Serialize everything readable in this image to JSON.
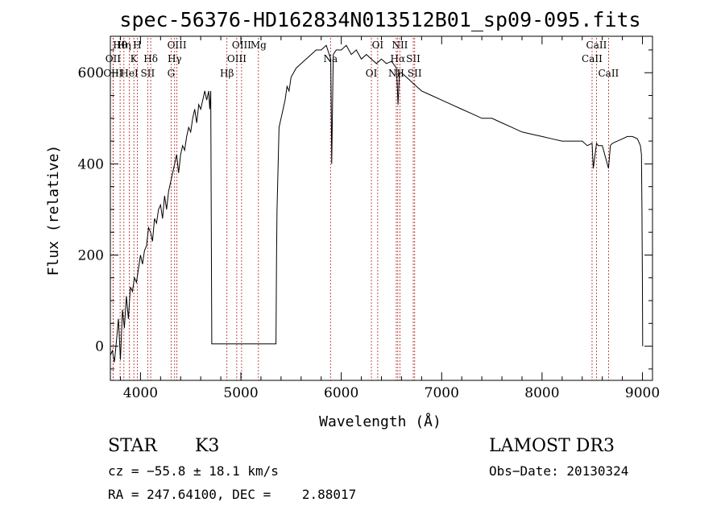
{
  "chart_data": {
    "type": "line",
    "title": "spec-56376-HD162834N013512B01_sp09-095.fits",
    "xlabel": "Wavelength (Å)",
    "ylabel": "Flux (relative)",
    "xlim": [
      3700,
      9100
    ],
    "ylim": [
      -75,
      680
    ],
    "xticks": [
      4000,
      5000,
      6000,
      7000,
      8000,
      9000
    ],
    "yticks": [
      0,
      200,
      400,
      600
    ],
    "grid": false,
    "legend": "none",
    "series": [
      {
        "name": "flux",
        "x": [
          3700,
          3720,
          3740,
          3760,
          3780,
          3800,
          3820,
          3840,
          3860,
          3880,
          3900,
          3920,
          3940,
          3960,
          3980,
          4000,
          4020,
          4040,
          4060,
          4080,
          4100,
          4120,
          4140,
          4160,
          4180,
          4200,
          4220,
          4240,
          4260,
          4280,
          4300,
          4320,
          4340,
          4360,
          4380,
          4400,
          4420,
          4440,
          4460,
          4480,
          4500,
          4520,
          4540,
          4560,
          4580,
          4600,
          4620,
          4640,
          4660,
          4680,
          4690,
          4700,
          4710,
          5350,
          5355,
          5360,
          5380,
          5400,
          5420,
          5440,
          5460,
          5480,
          5500,
          5550,
          5600,
          5650,
          5700,
          5750,
          5800,
          5850,
          5880,
          5895,
          5905,
          5920,
          5950,
          6000,
          6050,
          6100,
          6150,
          6200,
          6250,
          6300,
          6350,
          6400,
          6450,
          6500,
          6550,
          6565,
          6580,
          6600,
          6650,
          6700,
          6750,
          6800,
          6900,
          7000,
          7100,
          7200,
          7300,
          7400,
          7500,
          7600,
          7700,
          7800,
          7900,
          8000,
          8100,
          8200,
          8300,
          8400,
          8450,
          8498,
          8510,
          8542,
          8560,
          8600,
          8662,
          8680,
          8700,
          8750,
          8800,
          8850,
          8900,
          8950,
          8980,
          8990,
          8995,
          9000,
          9002
        ],
        "y": [
          -20,
          -10,
          -35,
          10,
          60,
          -30,
          80,
          40,
          110,
          60,
          130,
          120,
          150,
          140,
          170,
          200,
          180,
          210,
          220,
          260,
          250,
          230,
          280,
          270,
          300,
          310,
          280,
          330,
          300,
          340,
          360,
          380,
          400,
          420,
          380,
          420,
          440,
          430,
          460,
          480,
          470,
          500,
          520,
          490,
          530,
          520,
          540,
          560,
          540,
          560,
          520,
          560,
          5,
          5,
          200,
          300,
          480,
          500,
          520,
          540,
          570,
          560,
          590,
          610,
          620,
          630,
          640,
          650,
          650,
          660,
          640,
          630,
          400,
          640,
          650,
          650,
          660,
          640,
          650,
          630,
          640,
          630,
          620,
          630,
          620,
          625,
          610,
          530,
          600,
          600,
          590,
          580,
          570,
          560,
          550,
          540,
          530,
          520,
          510,
          500,
          500,
          490,
          480,
          470,
          465,
          460,
          455,
          450,
          450,
          450,
          440,
          445,
          390,
          445,
          440,
          440,
          390,
          440,
          445,
          450,
          455,
          460,
          460,
          455,
          440,
          420,
          300,
          130,
          0
        ]
      }
    ],
    "lines": [
      {
        "label": "Hθ",
        "wl": 3797
      },
      {
        "label": "OII",
        "wl": 3727
      },
      {
        "label": "OIII",
        "wl": 3727
      },
      {
        "label": "Hη",
        "wl": 3835
      },
      {
        "label": "K",
        "wl": 3934
      },
      {
        "label": "HeI",
        "wl": 3889
      },
      {
        "label": "H",
        "wl": 3968
      },
      {
        "label": "Hδ",
        "wl": 4102
      },
      {
        "label": "SII",
        "wl": 4072
      },
      {
        "label": "OIII",
        "wl": 4363
      },
      {
        "label": "Hγ",
        "wl": 4340
      },
      {
        "label": "G",
        "wl": 4305
      },
      {
        "label": "OIII",
        "wl": 5007
      },
      {
        "label": "OIII",
        "wl": 4959
      },
      {
        "label": "Hβ",
        "wl": 4861
      },
      {
        "label": "Mg",
        "wl": 5175
      },
      {
        "label": "Na",
        "wl": 5893
      },
      {
        "label": "OI",
        "wl": 6300
      },
      {
        "label": "OI",
        "wl": 6363
      },
      {
        "label": "Hα",
        "wl": 6563
      },
      {
        "label": "NII",
        "wl": 6548
      },
      {
        "label": "NII",
        "wl": 6584
      },
      {
        "label": "SII",
        "wl": 6717
      },
      {
        "label": "SII",
        "wl": 6731
      },
      {
        "label": "CaII",
        "wl": 8542
      },
      {
        "label": "CaII",
        "wl": 8498
      },
      {
        "label": "CaII",
        "wl": 8662
      }
    ]
  },
  "info": {
    "class": "STAR",
    "subclass": "K3",
    "survey": "LAMOST DR3",
    "cz": "cz = −55.8 ± 18.1 km/s",
    "obsdate": "Obs−Date: 20130324",
    "radec": "RA = 247.64100, DEC =    2.88017"
  },
  "colors": {
    "spectrum": "#000000",
    "lines": "#b22222",
    "background": "#ffffff"
  }
}
